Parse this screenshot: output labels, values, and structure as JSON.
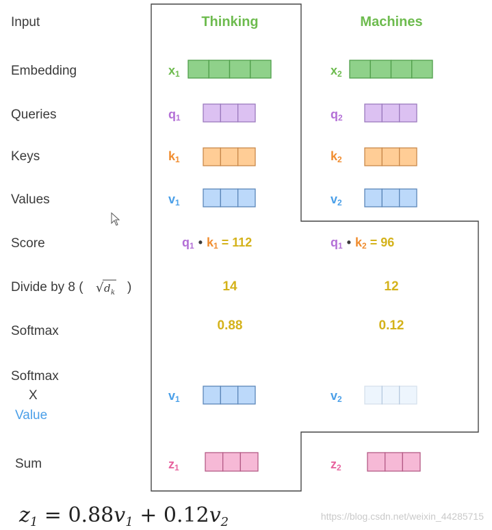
{
  "labels": {
    "input": "Input",
    "embedding": "Embedding",
    "queries": "Queries",
    "keys": "Keys",
    "values": "Values",
    "score": "Score",
    "divide": "Divide by 8 (",
    "divide_sqrt": "√",
    "divide_dk": "d",
    "divide_dk_sub": "k",
    "divide_close": ")",
    "softmax": "Softmax",
    "softmax_x": "Softmax",
    "x": "X",
    "value": "Value",
    "sum": "Sum"
  },
  "columns": [
    {
      "word": "Thinking",
      "x": "x",
      "x_sub": "1",
      "q": "q",
      "q_sub": "1",
      "k": "k",
      "k_sub": "1",
      "v": "v",
      "v_sub": "1",
      "score_q": "q",
      "score_q_sub": "1",
      "score_dot": "•",
      "score_k": "k",
      "score_k_sub": "1",
      "score_eq": "=",
      "score_value": "112",
      "divided": "14",
      "softmax": "0.88",
      "wv": "v",
      "wv_sub": "1",
      "z": "z",
      "z_sub": "1",
      "weight": 0.88
    },
    {
      "word": "Machines",
      "x": "x",
      "x_sub": "2",
      "q": "q",
      "q_sub": "2",
      "k": "k",
      "k_sub": "2",
      "v": "v",
      "v_sub": "2",
      "score_q": "q",
      "score_q_sub": "1",
      "score_dot": "•",
      "score_k": "k",
      "score_k_sub": "2",
      "score_eq": "=",
      "score_value": "96",
      "divided": "12",
      "softmax": "0.12",
      "wv": "v",
      "wv_sub": "2",
      "z": "z",
      "z_sub": "2",
      "weight": 0.12
    }
  ],
  "formula": {
    "lhs": "z",
    "lhs_sub": "1",
    "eq": " = 0.88",
    "t1": "v",
    "t1_sub": "1",
    "plus": " + 0.12",
    "t2": "v",
    "t2_sub": "2"
  },
  "watermark": "https://blog.csdn.net/weixin_44285715",
  "colors": {
    "embedding_fill": "#8fd18a",
    "embedding_stroke": "#4f9e4a",
    "embedding_text": "#6dbb4e",
    "query_fill": "#dcc1f2",
    "query_stroke": "#9a79bd",
    "query_text": "#b36fd6",
    "key_fill": "#ffcd96",
    "key_stroke": "#c8884a",
    "key_text": "#f08c2e",
    "value_fill": "#bcd9fa",
    "value_stroke": "#5a86b8",
    "value_text": "#4a9fe8",
    "z_fill": "#f6b9d6",
    "z_stroke": "#b45b86",
    "z_text": "#e7649f",
    "number_text": "#d4b21a"
  }
}
